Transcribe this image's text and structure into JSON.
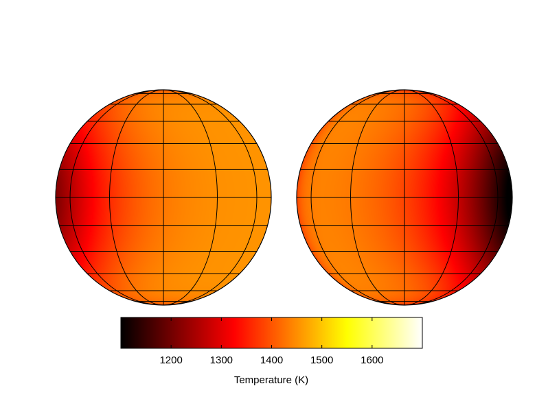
{
  "chart_data": {
    "type": "heatmap",
    "subtype": "orthographic-globe-maps",
    "title": "",
    "colormap": "hot",
    "colorbar": {
      "label": "Temperature (K)",
      "range": [
        1100,
        1700
      ],
      "ticks": [
        1200,
        1300,
        1400,
        1500,
        1600
      ],
      "tick_labels": [
        "1200",
        "1300",
        "1400",
        "1500",
        "1600"
      ]
    },
    "grid": true,
    "maps": [
      {
        "base_temperature": 1455,
        "features": [
          {
            "kind": "cold-region",
            "longitude": -85,
            "latitude": 0,
            "delta": -240,
            "lon_width": 40,
            "lat_width": 35
          },
          {
            "kind": "cold-region",
            "longitude": 0,
            "latitude": 90,
            "delta": -45,
            "lon_width": 180,
            "lat_width": 15
          },
          {
            "kind": "cold-region",
            "longitude": 0,
            "latitude": -90,
            "delta": -45,
            "lon_width": 180,
            "lat_width": 15
          }
        ]
      },
      {
        "base_temperature": 1445,
        "features": [
          {
            "kind": "cold-region",
            "longitude": 85,
            "latitude": 0,
            "delta": -360,
            "lon_width": 45,
            "lat_width": 38
          },
          {
            "kind": "cold-region",
            "longitude": -90,
            "latitude": 0,
            "delta": -60,
            "lon_width": 15,
            "lat_width": 60
          },
          {
            "kind": "cold-region",
            "longitude": 0,
            "latitude": 90,
            "delta": -60,
            "lon_width": 180,
            "lat_width": 15
          },
          {
            "kind": "cold-region",
            "longitude": 0,
            "latitude": -90,
            "delta": -60,
            "lon_width": 180,
            "lat_width": 15
          }
        ]
      }
    ]
  }
}
